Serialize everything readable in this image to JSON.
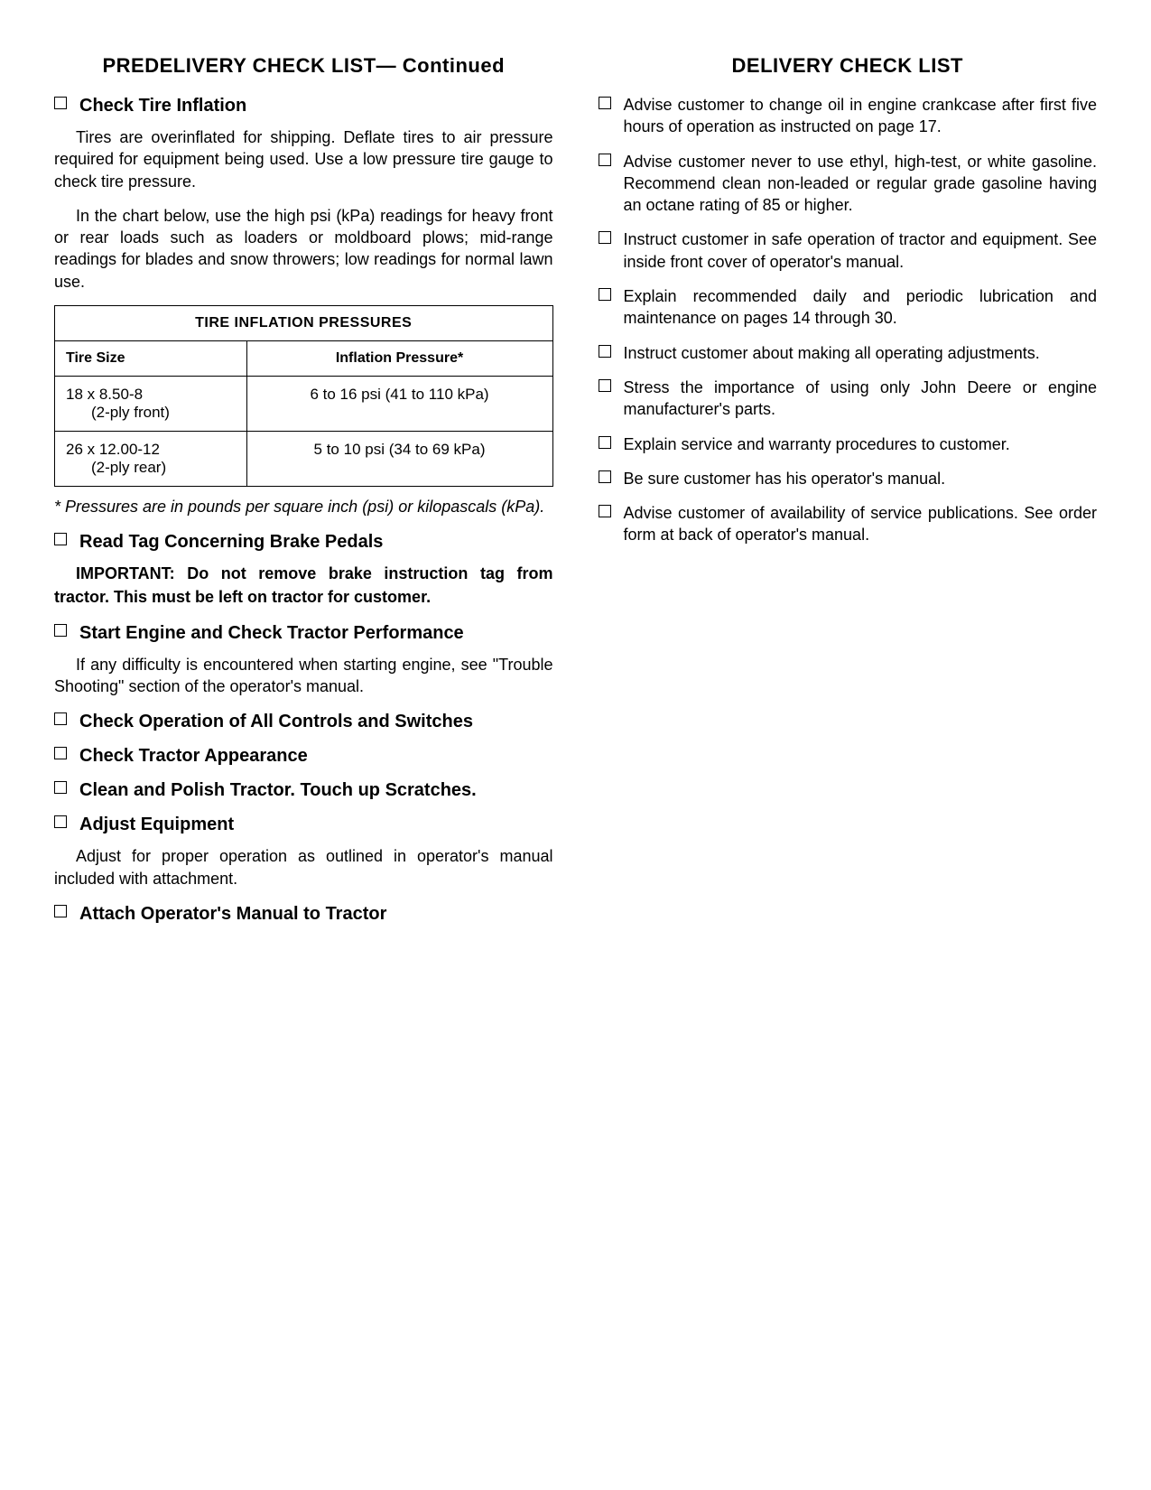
{
  "left": {
    "title": "PREDELIVERY CHECK LIST— Continued",
    "items": [
      {
        "heading": "Check Tire Inflation",
        "paras": [
          "Tires are overinflated for shipping. Deflate tires to air pressure required for equipment being used. Use a low pressure tire gauge to check tire pressure.",
          "In the chart below, use the high psi (kPa) readings for heavy front or rear loads such as loaders or moldboard plows; mid-range readings for blades and snow throwers; low readings for normal lawn use."
        ]
      }
    ],
    "table": {
      "title": "TIRE INFLATION PRESSURES",
      "col1": "Tire Size",
      "col2": "Inflation Pressure*",
      "rows": [
        {
          "size_main": "18 x 8.50-8",
          "size_sub": "(2-ply front)",
          "pressure": "6 to 16 psi (41 to 110 kPa)"
        },
        {
          "size_main": "26 x 12.00-12",
          "size_sub": "(2-ply rear)",
          "pressure": "5 to 10 psi (34 to 69 kPa)"
        }
      ]
    },
    "footnote": "* Pressures are in pounds per square inch (psi) or kilopascals (kPa).",
    "items2": [
      {
        "heading": "Read Tag Concerning Brake Pedals",
        "bold_para": "IMPORTANT: Do not remove brake instruction tag from tractor. This must be left on tractor for customer."
      },
      {
        "heading": "Start Engine and Check Tractor Performance",
        "para": "If any difficulty is encountered when starting engine, see \"Trouble Shooting\" section of the operator's manual."
      },
      {
        "heading": "Check Operation of All Controls and Switches"
      },
      {
        "heading": "Check Tractor Appearance"
      },
      {
        "heading": "Clean and Polish Tractor. Touch up Scratches."
      },
      {
        "heading": "Adjust Equipment",
        "para": "Adjust for proper operation as outlined in operator's manual included with attachment."
      },
      {
        "heading": "Attach Operator's Manual to Tractor"
      }
    ]
  },
  "right": {
    "title": "DELIVERY CHECK LIST",
    "items": [
      "Advise customer to change oil in engine crankcase after first five hours of operation as instructed on page 17.",
      "Advise customer never to use ethyl, high-test, or white gasoline. Recommend clean non-leaded or regular grade gasoline having an octane rating of 85 or higher.",
      "Instruct customer in safe operation of tractor and equipment. See inside front cover of operator's manual.",
      "Explain recommended daily and periodic lubrication and maintenance on pages 14 through 30.",
      "Instruct customer about making all operating adjustments.",
      "Stress the importance of using only John Deere or engine manufacturer's parts.",
      "Explain service and warranty procedures to customer.",
      "Be sure customer has his operator's manual.",
      "Advise customer of availability of service publications. See order form at back of operator's manual."
    ]
  }
}
